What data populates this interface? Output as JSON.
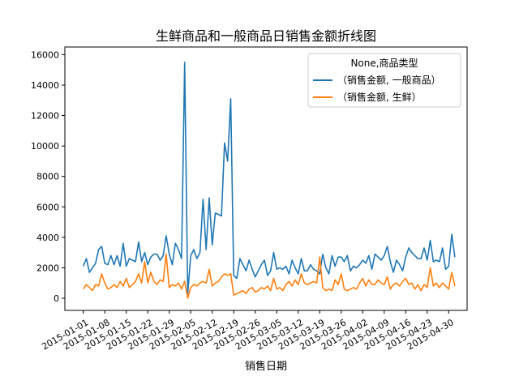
{
  "chart_data": {
    "type": "line",
    "title": "生鲜商品和一般商品日销售金额折线图",
    "xlabel": "销售日期",
    "ylabel": "",
    "x_start": "2015-01-01",
    "x_end": "2015-04-30",
    "xlim": [
      "2014-12-26",
      "2015-05-06"
    ],
    "ylim": [
      -800,
      16500
    ],
    "xticks": [
      "2015-01-01",
      "2015-01-08",
      "2015-01-15",
      "2015-01-22",
      "2015-01-29",
      "2015-02-05",
      "2015-02-12",
      "2015-02-19",
      "2015-02-26",
      "2015-03-05",
      "2015-03-12",
      "2015-03-19",
      "2015-03-26",
      "2015-04-02",
      "2015-04-09",
      "2015-04-16",
      "2015-04-23",
      "2015-04-30"
    ],
    "yticks": [
      0,
      2000,
      4000,
      6000,
      8000,
      10000,
      12000,
      14000,
      16000
    ],
    "grid": false,
    "legend": {
      "title": "None,商品类型",
      "position": "top-right"
    },
    "colors": [
      "#1f77b4",
      "#ff7f0e"
    ],
    "series": [
      {
        "name": "（销售金额, 一般商品）",
        "values": [
          2100,
          2600,
          1700,
          2000,
          2300,
          3200,
          3400,
          2300,
          2200,
          2800,
          2200,
          2800,
          2100,
          3600,
          2100,
          2600,
          2500,
          2400,
          3700,
          2400,
          3000,
          2200,
          2700,
          2900,
          2900,
          2500,
          2800,
          4100,
          2900,
          2200,
          3600,
          3200,
          2600,
          15500,
          300,
          2800,
          3200,
          2600,
          3000,
          6500,
          3200,
          6600,
          3500,
          5600,
          5500,
          5400,
          10200,
          9000,
          13100,
          1500,
          1300,
          2600,
          2200,
          1800,
          2500,
          1900,
          1400,
          1800,
          2200,
          2500,
          1500,
          1800,
          3000,
          1900,
          2000,
          1900,
          2100,
          1600,
          2500,
          2000,
          1600,
          2600,
          1800,
          1800,
          2200,
          1900,
          1800,
          1600,
          2900,
          2000,
          1600,
          2800,
          2100,
          2700,
          2700,
          2400,
          2800,
          1800,
          2100,
          2000,
          2200,
          2500,
          2300,
          2800,
          1900,
          2900,
          2700,
          2500,
          2800,
          3400,
          2400,
          1700,
          2500,
          2200,
          1800,
          2700,
          3300,
          3000,
          2800,
          2600,
          2600,
          3300,
          2500,
          3800,
          2400,
          2500,
          2400,
          3300,
          1900,
          2100,
          4200,
          2700
        ],
        "area": false
      },
      {
        "name": "（销售金额, 生鲜）",
        "values": [
          600,
          900,
          700,
          500,
          900,
          800,
          1600,
          1000,
          600,
          700,
          900,
          700,
          1100,
          800,
          1300,
          700,
          900,
          1100,
          1600,
          1000,
          2400,
          1000,
          1700,
          1100,
          900,
          1200,
          1100,
          2900,
          700,
          900,
          800,
          1000,
          600,
          1100,
          0,
          700,
          900,
          800,
          1000,
          1100,
          1000,
          1900,
          800,
          1000,
          1100,
          1400,
          1600,
          1500,
          1600,
          200,
          300,
          400,
          500,
          300,
          600,
          700,
          400,
          500,
          700,
          600,
          800,
          500,
          1300,
          600,
          700,
          500,
          900,
          1100,
          800,
          1200,
          900,
          1600,
          1000,
          900,
          1000,
          1100,
          1000,
          2700,
          700,
          500,
          600,
          500,
          1200,
          900,
          1600,
          600,
          500,
          600,
          700,
          600,
          1000,
          1300,
          800,
          1200,
          900,
          900,
          1200,
          1000,
          900,
          1400,
          600,
          900,
          1000,
          800,
          1100,
          1300,
          900,
          1000,
          600,
          900,
          500,
          900,
          700,
          2000,
          800,
          1000,
          700,
          1000,
          800,
          600,
          1700,
          800
        ],
        "area": false
      }
    ]
  }
}
